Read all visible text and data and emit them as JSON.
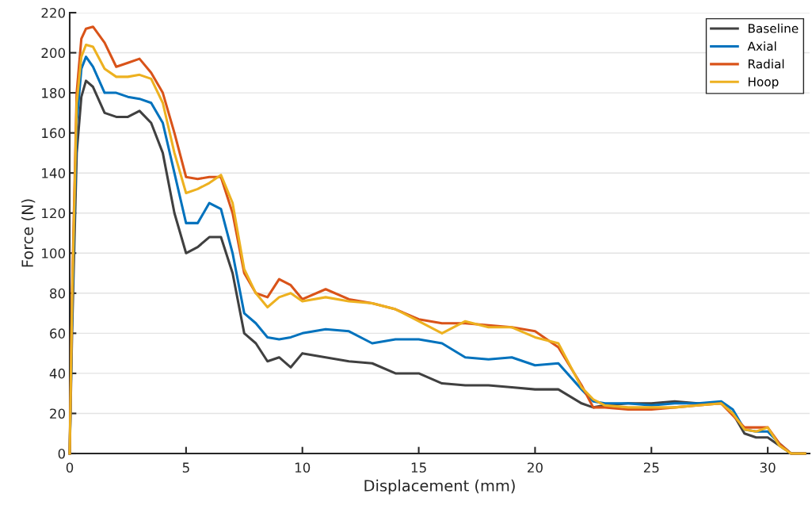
{
  "chart_data": {
    "type": "line",
    "xlabel": "Displacement (mm)",
    "ylabel": "Force (N)",
    "x": [
      0,
      0.1,
      0.3,
      0.5,
      0.7,
      1,
      1.5,
      2,
      2.5,
      3,
      3.5,
      4,
      4.5,
      5,
      5.5,
      6,
      6.5,
      7,
      7.5,
      8,
      8.5,
      9,
      9.5,
      10,
      11,
      12,
      13,
      14,
      15,
      16,
      17,
      18,
      19,
      20,
      21,
      22,
      22.5,
      23,
      24,
      25,
      26,
      27,
      28,
      28.5,
      29,
      29.5,
      30,
      30.5,
      31,
      31.6
    ],
    "series": [
      {
        "name": "Baseline",
        "color": "#404040",
        "values": [
          0,
          60,
          150,
          178,
          186,
          183,
          170,
          168,
          168,
          171,
          165,
          150,
          120,
          100,
          103,
          108,
          108,
          90,
          60,
          55,
          46,
          48,
          43,
          50,
          48,
          46,
          45,
          40,
          40,
          35,
          34,
          34,
          33,
          32,
          32,
          25,
          23,
          24,
          25,
          25,
          26,
          25,
          25,
          20,
          10,
          8,
          8,
          4,
          0,
          0
        ]
      },
      {
        "name": "Axial",
        "color": "#0072bd",
        "values": [
          0,
          70,
          165,
          192,
          198,
          193,
          180,
          180,
          178,
          177,
          175,
          165,
          140,
          115,
          115,
          125,
          122,
          100,
          70,
          65,
          58,
          57,
          58,
          60,
          62,
          61,
          55,
          57,
          57,
          55,
          48,
          47,
          48,
          44,
          45,
          32,
          26,
          25,
          25,
          24,
          25,
          25,
          26,
          22,
          12,
          11,
          11,
          5,
          0,
          0
        ]
      },
      {
        "name": "Radial",
        "color": "#d95319",
        "values": [
          0,
          80,
          180,
          207,
          212,
          213,
          205,
          193,
          195,
          197,
          190,
          180,
          160,
          138,
          137,
          138,
          138,
          120,
          90,
          80,
          78,
          87,
          84,
          77,
          82,
          77,
          75,
          72,
          67,
          65,
          65,
          64,
          63,
          61,
          53,
          34,
          23,
          23,
          22,
          22,
          23,
          24,
          25,
          19,
          13,
          13,
          13,
          5,
          0,
          0
        ]
      },
      {
        "name": "Hoop",
        "color": "#edb120",
        "values": [
          0,
          75,
          175,
          198,
          204,
          203,
          192,
          188,
          188,
          189,
          187,
          175,
          150,
          130,
          132,
          135,
          139,
          125,
          92,
          80,
          73,
          78,
          80,
          76,
          78,
          76,
          75,
          72,
          66,
          60,
          66,
          63,
          63,
          58,
          55,
          33,
          27,
          24,
          23,
          23,
          23,
          24,
          25,
          20,
          12,
          11,
          13,
          4,
          0,
          0
        ]
      }
    ],
    "xlim": [
      0,
      31.8
    ],
    "ylim": [
      0,
      220
    ],
    "xticks": [
      0,
      5,
      10,
      15,
      20,
      25,
      30
    ],
    "yticks": [
      0,
      20,
      40,
      60,
      80,
      100,
      120,
      140,
      160,
      180,
      200,
      220
    ],
    "grid": "y",
    "legend": "top right",
    "line_style": "solid",
    "marker": "none"
  }
}
